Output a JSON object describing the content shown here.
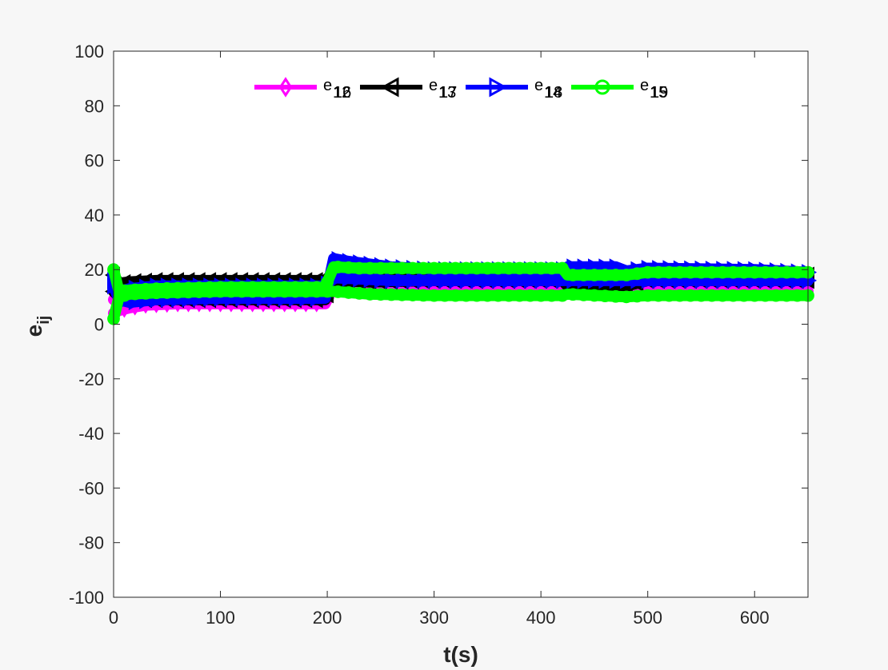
{
  "chart_data": {
    "type": "line",
    "xlabel": "t(s)",
    "ylabel_main": "e",
    "ylabel_sub": "ij",
    "xlim": [
      0,
      650
    ],
    "ylim": [
      -100,
      100
    ],
    "x_ticks": [
      0,
      100,
      200,
      300,
      400,
      500,
      600
    ],
    "y_ticks": [
      -100,
      -80,
      -60,
      -40,
      -20,
      0,
      20,
      40,
      60,
      80,
      100
    ],
    "grid": false,
    "legend_placement": "top",
    "legend": [
      {
        "base": "e",
        "sub_a": "12",
        "sub_b": "16",
        "color": "#ff00ff",
        "marker": "diamond"
      },
      {
        "base": "e",
        "sub_a": "13",
        "sub_b": "17",
        "color": "#000000",
        "marker": "triangle-left"
      },
      {
        "base": "e",
        "sub_a": "14",
        "sub_b": "18",
        "color": "#0000ff",
        "marker": "triangle-right"
      },
      {
        "base": "e",
        "sub_a": "15",
        "sub_b": "19",
        "color": "#00ff00",
        "marker": "circle"
      }
    ],
    "series": [
      {
        "color": "#ff00ff",
        "marker": "diamond",
        "points": [
          [
            0,
            4
          ],
          [
            5,
            5
          ],
          [
            15,
            6
          ],
          [
            30,
            7
          ],
          [
            60,
            7.5
          ],
          [
            100,
            7.5
          ],
          [
            198,
            7.5
          ],
          [
            205,
            13
          ],
          [
            215,
            13
          ],
          [
            250,
            12
          ],
          [
            300,
            11.5
          ],
          [
            420,
            11.5
          ],
          [
            425,
            12.5
          ],
          [
            470,
            12
          ],
          [
            480,
            11
          ],
          [
            500,
            12
          ],
          [
            600,
            12
          ],
          [
            650,
            12
          ]
        ]
      },
      {
        "color": "#ff00ff",
        "marker": "diamond",
        "points": [
          [
            0,
            9
          ],
          [
            5,
            10
          ],
          [
            15,
            11
          ],
          [
            40,
            12
          ],
          [
            100,
            12.5
          ],
          [
            198,
            12.5
          ],
          [
            206,
            15
          ],
          [
            230,
            14.5
          ],
          [
            300,
            14
          ],
          [
            420,
            14
          ],
          [
            425,
            12
          ],
          [
            480,
            12
          ],
          [
            500,
            13.5
          ],
          [
            600,
            14
          ],
          [
            650,
            14
          ]
        ]
      },
      {
        "color": "#000000",
        "marker": "triangle-left",
        "points": [
          [
            0,
            12
          ],
          [
            5,
            10
          ],
          [
            15,
            9
          ],
          [
            40,
            9
          ],
          [
            100,
            9
          ],
          [
            198,
            9
          ],
          [
            206,
            16
          ],
          [
            240,
            15.5
          ],
          [
            300,
            16
          ],
          [
            420,
            16
          ],
          [
            425,
            14
          ],
          [
            480,
            14
          ],
          [
            500,
            16
          ],
          [
            600,
            16
          ],
          [
            650,
            16
          ]
        ]
      },
      {
        "color": "#000000",
        "marker": "triangle-left",
        "points": [
          [
            0,
            18
          ],
          [
            5,
            15
          ],
          [
            15,
            15.5
          ],
          [
            40,
            16
          ],
          [
            100,
            16
          ],
          [
            198,
            16
          ],
          [
            206,
            19
          ],
          [
            250,
            18.5
          ],
          [
            300,
            18
          ],
          [
            420,
            18
          ],
          [
            425,
            16.5
          ],
          [
            480,
            16.5
          ],
          [
            500,
            18
          ],
          [
            600,
            18
          ],
          [
            650,
            18
          ]
        ]
      },
      {
        "color": "#0000ff",
        "marker": "triangle-right",
        "points": [
          [
            0,
            14
          ],
          [
            5,
            9
          ],
          [
            15,
            8
          ],
          [
            40,
            9
          ],
          [
            100,
            9.5
          ],
          [
            198,
            9.5
          ],
          [
            206,
            24
          ],
          [
            220,
            23
          ],
          [
            260,
            21
          ],
          [
            300,
            20
          ],
          [
            420,
            20
          ],
          [
            425,
            21
          ],
          [
            470,
            21
          ],
          [
            480,
            19.5
          ],
          [
            500,
            20.5
          ],
          [
            600,
            20
          ],
          [
            650,
            19
          ]
        ]
      },
      {
        "color": "#0000ff",
        "marker": "triangle-right",
        "points": [
          [
            0,
            16
          ],
          [
            5,
            12
          ],
          [
            15,
            13
          ],
          [
            40,
            14
          ],
          [
            100,
            14
          ],
          [
            198,
            14
          ],
          [
            206,
            17
          ],
          [
            260,
            16
          ],
          [
            300,
            16
          ],
          [
            650,
            16
          ]
        ]
      },
      {
        "color": "#00ff00",
        "marker": "circle",
        "points": [
          [
            0,
            2
          ],
          [
            5,
            10
          ],
          [
            15,
            11
          ],
          [
            40,
            11.5
          ],
          [
            100,
            12
          ],
          [
            198,
            12
          ],
          [
            206,
            12
          ],
          [
            240,
            11
          ],
          [
            300,
            10.5
          ],
          [
            420,
            10.5
          ],
          [
            425,
            11
          ],
          [
            480,
            10
          ],
          [
            500,
            10.5
          ],
          [
            600,
            10.5
          ],
          [
            650,
            10.5
          ]
        ]
      },
      {
        "color": "#00ff00",
        "marker": "circle",
        "points": [
          [
            0,
            20
          ],
          [
            5,
            12
          ],
          [
            15,
            12.5
          ],
          [
            40,
            13
          ],
          [
            100,
            13.5
          ],
          [
            198,
            13.5
          ],
          [
            206,
            21
          ],
          [
            230,
            20.5
          ],
          [
            300,
            20.5
          ],
          [
            420,
            20.5
          ],
          [
            425,
            18
          ],
          [
            480,
            18
          ],
          [
            500,
            19
          ],
          [
            600,
            19
          ],
          [
            650,
            19
          ]
        ]
      }
    ]
  }
}
